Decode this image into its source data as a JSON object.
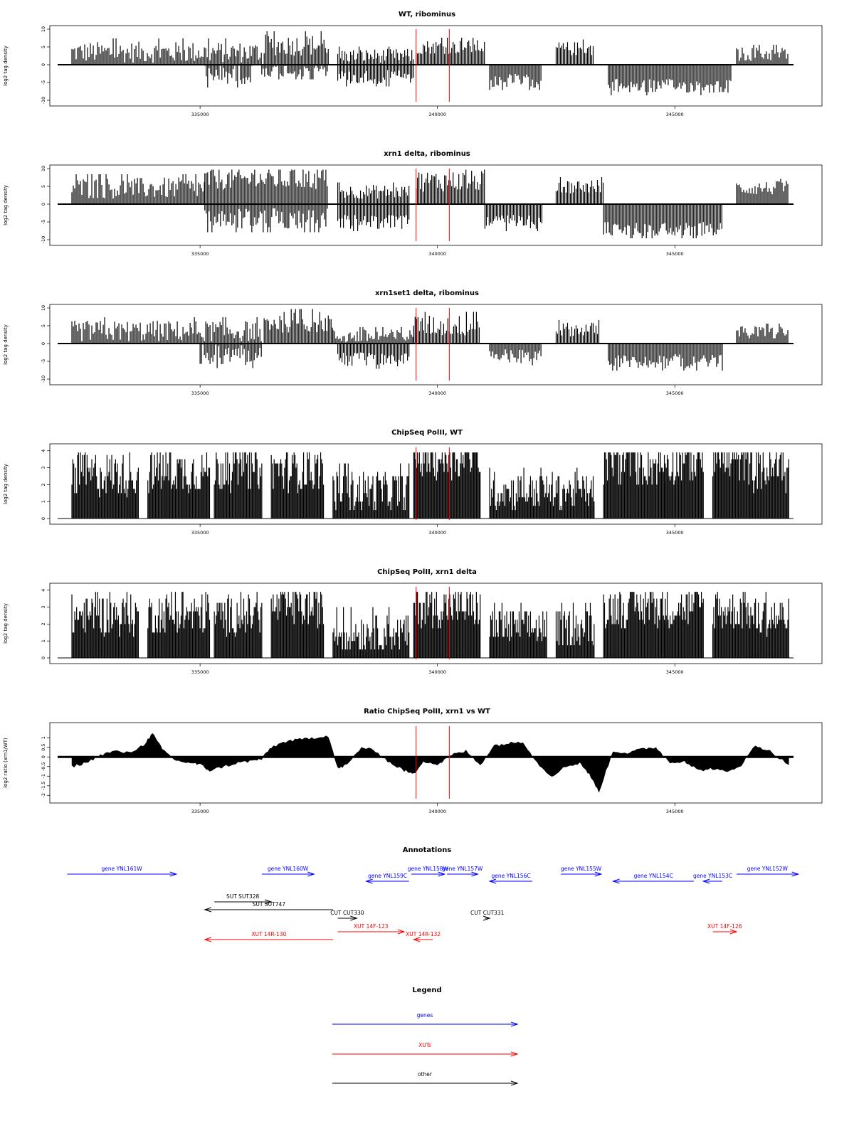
{
  "colors": {
    "gene": "#0000ff",
    "xut": "#ff0000",
    "other": "#000000",
    "bars": "#000000",
    "marker": "#ff0000"
  },
  "chart_data": [
    {
      "type": "bar",
      "title": "WT, ribominus",
      "ylabel": "log2 tag density",
      "ylim": [
        -10,
        10
      ],
      "yticks": [
        -10,
        -5,
        0,
        5,
        10
      ],
      "xlim": [
        332000,
        347500
      ],
      "xticks": [
        335000,
        340000,
        345000
      ],
      "markers": [
        339550,
        340250
      ],
      "bar_width": 30,
      "segments": [
        {
          "x": [
            332300,
            336300
          ],
          "level": 3.5,
          "sign": 1,
          "var": 3
        },
        {
          "x": [
            335100,
            336100
          ],
          "level": 2.5,
          "sign": -1,
          "var": 3
        },
        {
          "x": [
            336350,
            337700
          ],
          "level": 5.5,
          "sign": 1,
          "var": 3
        },
        {
          "x": [
            336300,
            337700
          ],
          "level": 1.5,
          "sign": -1,
          "var": 2
        },
        {
          "x": [
            337900,
            339500
          ],
          "level": 2.5,
          "sign": 1,
          "var": 2
        },
        {
          "x": [
            337900,
            339500
          ],
          "level": 3.5,
          "sign": -1,
          "var": 2
        },
        {
          "x": [
            339550,
            341000
          ],
          "level": 5,
          "sign": 1,
          "var": 2
        },
        {
          "x": [
            341100,
            342200
          ],
          "level": 4.5,
          "sign": -1,
          "var": 2
        },
        {
          "x": [
            342500,
            343300
          ],
          "level": 4.5,
          "sign": 1,
          "var": 2
        },
        {
          "x": [
            343600,
            346200
          ],
          "level": 6,
          "sign": -1,
          "var": 2
        },
        {
          "x": [
            346300,
            347400
          ],
          "level": 3,
          "sign": 1,
          "var": 2
        }
      ]
    },
    {
      "type": "bar",
      "title": "xrn1 delta, ribominus",
      "ylabel": "log2 tag density",
      "ylim": [
        -10,
        10
      ],
      "yticks": [
        -10,
        -5,
        0,
        5,
        10
      ],
      "xlim": [
        332000,
        347500
      ],
      "xticks": [
        335000,
        340000,
        345000
      ],
      "markers": [
        339550,
        340250
      ],
      "bar_width": 30,
      "segments": [
        {
          "x": [
            332300,
            335100
          ],
          "level": 4.5,
          "sign": 1,
          "var": 3
        },
        {
          "x": [
            335100,
            337700
          ],
          "level": 7,
          "sign": 1,
          "var": 3
        },
        {
          "x": [
            335100,
            337700
          ],
          "level": 4,
          "sign": -1,
          "var": 3
        },
        {
          "x": [
            337900,
            339400
          ],
          "level": 3.5,
          "sign": 1,
          "var": 2
        },
        {
          "x": [
            337900,
            339400
          ],
          "level": 5,
          "sign": -1,
          "var": 2
        },
        {
          "x": [
            339550,
            341000
          ],
          "level": 6.5,
          "sign": 1,
          "var": 3
        },
        {
          "x": [
            341000,
            342200
          ],
          "level": 5,
          "sign": -1,
          "var": 2
        },
        {
          "x": [
            342500,
            343500
          ],
          "level": 5,
          "sign": 1,
          "var": 2
        },
        {
          "x": [
            343500,
            346000
          ],
          "level": 7,
          "sign": -1,
          "var": 2
        },
        {
          "x": [
            346300,
            347400
          ],
          "level": 4.5,
          "sign": 1,
          "var": 2
        }
      ]
    },
    {
      "type": "bar",
      "title": "xrn1set1 delta, ribominus",
      "ylabel": "log2 tag density",
      "ylim": [
        -10,
        10
      ],
      "yticks": [
        -10,
        -5,
        0,
        5,
        10
      ],
      "xlim": [
        332000,
        347500
      ],
      "xticks": [
        335000,
        340000,
        345000
      ],
      "markers": [
        339550,
        340250
      ],
      "bar_width": 30,
      "segments": [
        {
          "x": [
            332300,
            336300
          ],
          "level": 3.5,
          "sign": 1,
          "var": 3
        },
        {
          "x": [
            335000,
            336300
          ],
          "level": 3,
          "sign": -1,
          "var": 3
        },
        {
          "x": [
            336350,
            337800
          ],
          "level": 6,
          "sign": 1,
          "var": 3
        },
        {
          "x": [
            337800,
            339500
          ],
          "level": 2,
          "sign": 1,
          "var": 2
        },
        {
          "x": [
            337900,
            339400
          ],
          "level": 4.5,
          "sign": -1,
          "var": 2
        },
        {
          "x": [
            339500,
            340900
          ],
          "level": 5,
          "sign": 1,
          "var": 3
        },
        {
          "x": [
            341100,
            342200
          ],
          "level": 3.5,
          "sign": -1,
          "var": 2
        },
        {
          "x": [
            342500,
            343400
          ],
          "level": 4,
          "sign": 1,
          "var": 2
        },
        {
          "x": [
            343600,
            346000
          ],
          "level": 5,
          "sign": -1,
          "var": 2
        },
        {
          "x": [
            346300,
            347400
          ],
          "level": 3,
          "sign": 1,
          "var": 2
        }
      ]
    },
    {
      "type": "bar",
      "title": "ChipSeq PolII, WT",
      "ylabel": "log2 tag density",
      "ylim": [
        0,
        4.2
      ],
      "yticks": [
        0,
        1,
        2,
        3,
        4
      ],
      "xlim": [
        332000,
        347500
      ],
      "xticks": [
        335000,
        340000,
        345000
      ],
      "markers": [
        339550,
        340250
      ],
      "bar_width": 20,
      "segments": [
        {
          "x": [
            332300,
            333700
          ],
          "level": 2.6,
          "sign": 1,
          "var": 1.3
        },
        {
          "x": [
            333900,
            335200
          ],
          "level": 2.8,
          "sign": 1,
          "var": 1.3
        },
        {
          "x": [
            335300,
            336300
          ],
          "level": 2.9,
          "sign": 1,
          "var": 1.3
        },
        {
          "x": [
            336500,
            337600
          ],
          "level": 2.9,
          "sign": 1,
          "var": 1.3
        },
        {
          "x": [
            337800,
            339400
          ],
          "level": 1.6,
          "sign": 1,
          "var": 1.2
        },
        {
          "x": [
            339500,
            340900
          ],
          "level": 3.6,
          "sign": 1,
          "var": 1.3
        },
        {
          "x": [
            341100,
            343300
          ],
          "level": 1.6,
          "sign": 1,
          "var": 1.1
        },
        {
          "x": [
            343500,
            344800
          ],
          "level": 3.2,
          "sign": 1,
          "var": 1.3
        },
        {
          "x": [
            344800,
            345600
          ],
          "level": 3.4,
          "sign": 1,
          "var": 1.3
        },
        {
          "x": [
            345800,
            346600
          ],
          "level": 3.4,
          "sign": 1,
          "var": 1.3
        },
        {
          "x": [
            346600,
            347400
          ],
          "level": 2.8,
          "sign": 1,
          "var": 1.3
        }
      ]
    },
    {
      "type": "bar",
      "title": "ChipSeq PolII, xrn1 delta",
      "ylabel": "log2 tag density",
      "ylim": [
        0,
        4.2
      ],
      "yticks": [
        0,
        1,
        2,
        3,
        4
      ],
      "xlim": [
        332000,
        347500
      ],
      "xticks": [
        335000,
        340000,
        345000
      ],
      "markers": [
        339550,
        340250
      ],
      "bar_width": 20,
      "segments": [
        {
          "x": [
            332300,
            333700
          ],
          "level": 2.5,
          "sign": 1,
          "var": 1.2
        },
        {
          "x": [
            333900,
            335200
          ],
          "level": 2.6,
          "sign": 1,
          "var": 1.2
        },
        {
          "x": [
            335300,
            336300
          ],
          "level": 2.5,
          "sign": 1,
          "var": 1.2
        },
        {
          "x": [
            336500,
            337600
          ],
          "level": 3.0,
          "sign": 1,
          "var": 1.2
        },
        {
          "x": [
            337800,
            339400
          ],
          "level": 1.5,
          "sign": 1,
          "var": 1.1
        },
        {
          "x": [
            339500,
            340900
          ],
          "level": 3.0,
          "sign": 1,
          "var": 1.2
        },
        {
          "x": [
            341100,
            342300
          ],
          "level": 1.8,
          "sign": 1,
          "var": 1.1
        },
        {
          "x": [
            342500,
            343300
          ],
          "level": 1.8,
          "sign": 1,
          "var": 1.1
        },
        {
          "x": [
            343500,
            344800
          ],
          "level": 3.0,
          "sign": 1,
          "var": 1.2
        },
        {
          "x": [
            344800,
            345600
          ],
          "level": 3.0,
          "sign": 1,
          "var": 1.2
        },
        {
          "x": [
            345800,
            346600
          ],
          "level": 2.8,
          "sign": 1,
          "var": 1.2
        },
        {
          "x": [
            346600,
            347400
          ],
          "level": 2.4,
          "sign": 1,
          "var": 1.2
        }
      ]
    },
    {
      "type": "area",
      "title": "Ratio ChipSeq PolII, xrn1 vs WT",
      "ylabel": "log2 ratio (xrn1/WT)",
      "ylim": [
        -2.1,
        1.6
      ],
      "yticks": [
        -2.0,
        -1.5,
        -1.0,
        -0.5,
        0.0,
        0.5,
        1.0
      ],
      "xlim": [
        332000,
        347500
      ],
      "xticks": [
        335000,
        340000,
        345000
      ],
      "markers": [
        339550,
        340250
      ],
      "x": [
        332300,
        332600,
        332900,
        333200,
        333500,
        333800,
        334000,
        334200,
        334500,
        334800,
        335000,
        335200,
        335500,
        335800,
        336100,
        336300,
        336500,
        336800,
        337100,
        337400,
        337700,
        337900,
        338100,
        338400,
        338700,
        339000,
        339300,
        339500,
        339700,
        340000,
        340300,
        340600,
        340900,
        341200,
        341500,
        341800,
        342100,
        342400,
        342700,
        343000,
        343200,
        343400,
        343700,
        344000,
        344300,
        344600,
        344900,
        345200,
        345500,
        345800,
        346100,
        346400,
        346700,
        347000,
        347400
      ],
      "values": [
        -0.5,
        -0.3,
        0.1,
        0.3,
        0.2,
        0.6,
        1.2,
        0.4,
        -0.2,
        -0.3,
        -0.4,
        -0.7,
        -0.5,
        -0.3,
        -0.2,
        -0.1,
        0.5,
        0.8,
        0.9,
        1.0,
        1.1,
        -0.6,
        -0.4,
        0.5,
        0.3,
        -0.3,
        -0.7,
        -0.9,
        -0.2,
        -0.4,
        0.1,
        0.3,
        -0.4,
        0.6,
        0.7,
        0.8,
        -0.3,
        -1.0,
        -0.5,
        -0.3,
        -0.9,
        -1.8,
        0.3,
        0.2,
        0.4,
        0.5,
        -0.3,
        -0.2,
        -0.7,
        -0.6,
        -0.8,
        -0.4,
        0.6,
        0.3,
        -0.4
      ]
    }
  ],
  "annotations": {
    "title": "Annotations",
    "xlim": [
      332000,
      347500
    ],
    "items": [
      {
        "label": "gene YNL161W",
        "kind": "gene",
        "start": 332200,
        "end": 334500,
        "row": 0
      },
      {
        "label": "gene YNL160W",
        "kind": "gene",
        "start": 336300,
        "end": 337400,
        "row": 0
      },
      {
        "label": "gene YNL159C",
        "kind": "gene",
        "start": 338500,
        "end": 339400,
        "row": 1
      },
      {
        "label": "gene YNL158W",
        "kind": "gene",
        "start": 339450,
        "end": 340150,
        "row": 0
      },
      {
        "label": "gene YNL157W",
        "kind": "gene",
        "start": 340200,
        "end": 340850,
        "row": 0
      },
      {
        "label": "gene YNL156C",
        "kind": "gene",
        "start": 341100,
        "end": 342000,
        "row": 1
      },
      {
        "label": "gene YNL155W",
        "kind": "gene",
        "start": 342600,
        "end": 343450,
        "row": 0
      },
      {
        "label": "gene YNL154C",
        "kind": "gene",
        "start": 343700,
        "end": 345400,
        "row": 1
      },
      {
        "label": "gene YNL153C",
        "kind": "gene",
        "start": 345600,
        "end": 346000,
        "row": 1
      },
      {
        "label": "gene YNL152W",
        "kind": "gene",
        "start": 346300,
        "end": 347600,
        "row": 0
      },
      {
        "label": "SUT SUT328",
        "kind": "other",
        "start": 335300,
        "end": 336500,
        "row": 2
      },
      {
        "label": "SUT SUT747",
        "kind": "other",
        "start": 335100,
        "end": 337800,
        "row": 3
      },
      {
        "label": "CUT CUT330",
        "kind": "other",
        "start": 337900,
        "end": 338300,
        "row": 4
      },
      {
        "label": "CUT CUT331",
        "kind": "other",
        "start": 341000,
        "end": 341100,
        "row": 4
      },
      {
        "label": "XUT 14F-123",
        "kind": "xut",
        "start": 337900,
        "end": 339300,
        "row": 5
      },
      {
        "label": "XUT 14R-130",
        "kind": "xut",
        "start": 335100,
        "end": 337800,
        "row": 6
      },
      {
        "label": "XUT 14R-132",
        "kind": "xut",
        "start": 339500,
        "end": 339900,
        "row": 6
      },
      {
        "label": "XUT 14F-126",
        "kind": "xut",
        "start": 345800,
        "end": 346300,
        "row": 5
      }
    ]
  },
  "legend": {
    "title": "Legend",
    "entries": [
      {
        "label": "genes",
        "kind": "gene"
      },
      {
        "label": "XUTs",
        "kind": "xut"
      },
      {
        "label": "other",
        "kind": "other"
      }
    ]
  }
}
